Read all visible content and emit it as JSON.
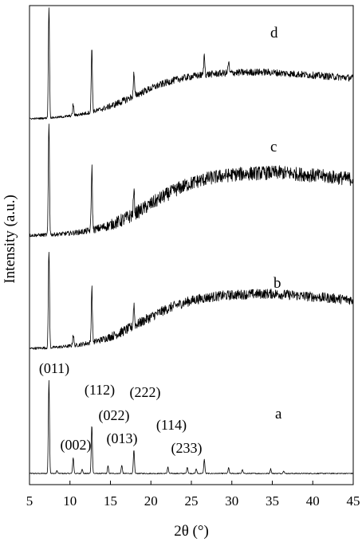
{
  "chart_data": {
    "type": "line",
    "xlabel": "2θ (°)",
    "ylabel": "Intensity (a.u.)",
    "xlim": [
      5,
      45
    ],
    "x_ticks": [
      5,
      10,
      15,
      20,
      25,
      30,
      35,
      40,
      45
    ],
    "y_ticks_shown": false,
    "grid": false,
    "series": [
      {
        "name": "a",
        "peaks": [
          {
            "x": 7.4,
            "height": 1.0,
            "hkl": "(011)"
          },
          {
            "x": 8.4,
            "height": 0.03,
            "hkl": ""
          },
          {
            "x": 10.4,
            "height": 0.17,
            "hkl": "(002)"
          },
          {
            "x": 11.5,
            "height": 0.05,
            "hkl": ""
          },
          {
            "x": 12.7,
            "height": 0.52,
            "hkl": "(112)"
          },
          {
            "x": 14.7,
            "height": 0.08,
            "hkl": ""
          },
          {
            "x": 16.4,
            "height": 0.09,
            "hkl": ""
          },
          {
            "x": 17.9,
            "height": 0.25,
            "hkl": "(022)"
          },
          {
            "x": 22.1,
            "height": 0.07,
            "hkl": "(013)"
          },
          {
            "x": 24.5,
            "height": 0.07,
            "hkl": ""
          },
          {
            "x": 25.6,
            "height": 0.05,
            "hkl": ""
          },
          {
            "x": 26.6,
            "height": 0.15,
            "hkl": "(222)"
          },
          {
            "x": 29.6,
            "height": 0.06,
            "hkl": "(114)"
          },
          {
            "x": 31.3,
            "height": 0.04,
            "hkl": ""
          },
          {
            "x": 34.8,
            "height": 0.05,
            "hkl": "(233)"
          },
          {
            "x": 36.4,
            "height": 0.03,
            "hkl": ""
          }
        ]
      },
      {
        "name": "b",
        "peaks": [
          {
            "x": 7.4,
            "height": 1.0
          },
          {
            "x": 10.4,
            "height": 0.12
          },
          {
            "x": 12.7,
            "height": 0.55
          },
          {
            "x": 17.9,
            "height": 0.22
          }
        ],
        "amorphous_halo_center": 29
      },
      {
        "name": "c",
        "peaks": [
          {
            "x": 7.4,
            "height": 1.0
          },
          {
            "x": 12.7,
            "height": 0.56
          },
          {
            "x": 17.9,
            "height": 0.2
          }
        ],
        "amorphous_halo_center": 30
      },
      {
        "name": "d",
        "peaks": [
          {
            "x": 7.4,
            "height": 1.0
          },
          {
            "x": 10.4,
            "height": 0.1
          },
          {
            "x": 12.7,
            "height": 0.57
          },
          {
            "x": 17.9,
            "height": 0.2
          },
          {
            "x": 26.6,
            "height": 0.17
          },
          {
            "x": 29.6,
            "height": 0.1
          }
        ],
        "amorphous_halo_center": 28
      }
    ],
    "annotations": [
      "(011)",
      "(002)",
      "(112)",
      "(022)",
      "(013)",
      "(222)",
      "(114)",
      "(233)"
    ]
  }
}
